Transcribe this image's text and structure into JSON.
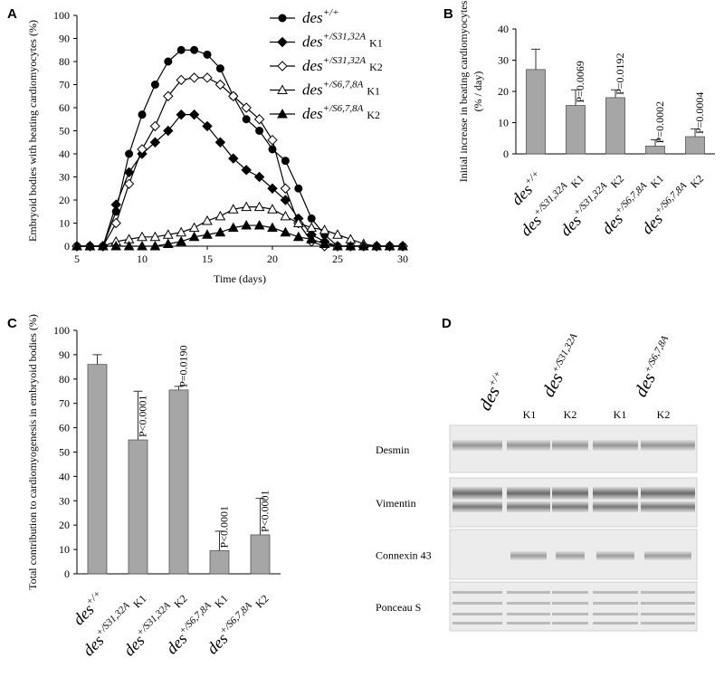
{
  "chart_data": [
    {
      "panel": "A",
      "type": "line",
      "x_label": "Time (days)",
      "y_label": "Embryoid bodies with beating cardiomyocytes (%)",
      "x": [
        5,
        6,
        7,
        8,
        9,
        10,
        11,
        12,
        13,
        14,
        15,
        16,
        17,
        18,
        19,
        20,
        21,
        22,
        23,
        24,
        25,
        26,
        27,
        28,
        29,
        30
      ],
      "xlim": [
        5,
        30
      ],
      "xticks": [
        5,
        10,
        15,
        20,
        25,
        30
      ],
      "ylim": [
        0,
        100
      ],
      "yticks": [
        0,
        10,
        20,
        30,
        40,
        50,
        60,
        70,
        80,
        90,
        100
      ],
      "legend": "upper right",
      "series": [
        {
          "name": [
            "des",
            "+/+"
          ],
          "color": "#000000",
          "marker": "circle",
          "filled": true,
          "values": [
            0,
            0,
            0,
            15,
            40,
            57,
            70,
            80,
            85,
            85,
            83,
            77,
            65,
            55,
            50,
            42,
            37,
            25,
            12,
            5,
            0,
            0,
            0,
            0,
            0,
            0
          ]
        },
        {
          "name": [
            "des",
            "+/S31,32A",
            "K1"
          ],
          "color": "#000000",
          "marker": "diamond",
          "filled": true,
          "values": [
            0,
            0,
            0,
            18,
            32,
            40,
            45,
            50,
            57,
            57,
            52,
            45,
            38,
            33,
            30,
            25,
            20,
            12,
            5,
            2,
            0,
            0,
            0,
            0,
            0,
            0
          ]
        },
        {
          "name": [
            "des",
            "+/S31,32A",
            "K2"
          ],
          "color": "#000000",
          "marker": "diamond",
          "filled": false,
          "values": [
            0,
            0,
            0,
            10,
            27,
            42,
            52,
            65,
            72,
            73,
            73,
            70,
            65,
            60,
            55,
            46,
            25,
            10,
            2,
            0,
            0,
            0,
            0,
            0,
            0,
            0
          ]
        },
        {
          "name": [
            "des",
            "+/S6,7,8A",
            "K1"
          ],
          "color": "#000000",
          "marker": "triangle",
          "filled": false,
          "values": [
            0,
            0,
            0,
            2,
            3,
            4,
            4,
            5,
            6,
            8,
            11,
            13,
            16,
            17,
            17,
            16,
            13,
            10,
            8,
            7,
            5,
            3,
            1,
            0,
            0,
            0
          ]
        },
        {
          "name": [
            "des",
            "+/S6,7,8A",
            "K2"
          ],
          "color": "#000000",
          "marker": "triangle",
          "filled": true,
          "values": [
            0,
            0,
            0,
            0,
            0,
            0,
            0,
            1,
            2,
            4,
            5,
            6,
            8,
            9,
            9,
            8,
            6,
            4,
            3,
            1,
            0,
            0,
            0,
            0,
            0,
            0
          ]
        }
      ]
    },
    {
      "panel": "B",
      "type": "bar",
      "y_label": [
        "Initial increase in beating cardiomyocytes",
        "(% / day)"
      ],
      "categories": [
        [
          "des",
          "+/+"
        ],
        [
          "des",
          "+/S31,32A",
          "K1"
        ],
        [
          "des",
          "+/S31,32A",
          "K2"
        ],
        [
          "des",
          "+/S6,7,8A",
          "K1"
        ],
        [
          "des",
          "+/S6,7,8A",
          "K2"
        ]
      ],
      "values": [
        27,
        15.5,
        18,
        2.5,
        5.5
      ],
      "errors": [
        6.5,
        5,
        2.5,
        2,
        2.5
      ],
      "annotations": [
        null,
        "P=0.0069",
        "P=0.0192",
        "P=0.0002",
        "P=0.0004"
      ],
      "color": "#a6a6a6",
      "ylim": [
        0,
        40
      ],
      "yticks": [
        0,
        10,
        20,
        30,
        40
      ]
    },
    {
      "panel": "C",
      "type": "bar",
      "y_label": [
        "Total contribution to cardiomyogenesis in embryoid bodies (%)"
      ],
      "categories": [
        [
          "des",
          "+/+"
        ],
        [
          "des",
          "+/S31,32A",
          "K1"
        ],
        [
          "des",
          "+/S31,32A",
          "K2"
        ],
        [
          "des",
          "+/S6,7,8A",
          "K1"
        ],
        [
          "des",
          "+/S6,7,8A",
          "K2"
        ]
      ],
      "values": [
        86,
        55,
        75.5,
        9.5,
        16
      ],
      "errors": [
        4,
        20,
        1.5,
        8,
        15
      ],
      "annotations": [
        null,
        "P<0.0001",
        "P=0.0190",
        "P<0.0001",
        "P<0.0001"
      ],
      "color": "#a6a6a6",
      "ylim": [
        0,
        100
      ],
      "yticks": [
        0,
        10,
        20,
        30,
        40,
        50,
        60,
        70,
        80,
        90,
        100
      ]
    }
  ],
  "blot": {
    "panel": "D",
    "lanes": [
      [
        "des",
        "+/+"
      ],
      [
        "des",
        "+/S31,32A"
      ],
      [
        "des",
        "+/S6,7,8A"
      ]
    ],
    "clones": [
      "K1",
      "K2",
      "K1",
      "K2"
    ],
    "rows": [
      "Desmin",
      "Vimentin",
      "Connexin 43",
      "Ponceau S"
    ]
  }
}
